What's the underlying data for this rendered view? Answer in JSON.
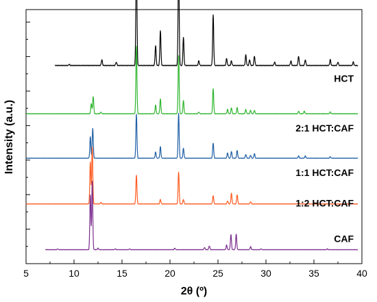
{
  "chart_data": {
    "type": "line",
    "xlabel": "2θ (º)",
    "ylabel": "Intensity (a.u.)",
    "xlim": [
      5,
      40
    ],
    "x_ticks": [
      5,
      10,
      15,
      20,
      25,
      30,
      35,
      40
    ],
    "x_tick_labels": [
      "5",
      "10",
      "15",
      "20",
      "25",
      "30",
      "35",
      "40"
    ],
    "y_tick_labels_shown": false,
    "legend": "inline labels at right of each trace",
    "series": [
      {
        "name": "HCT",
        "color": "#000000",
        "baseline": 0.78,
        "scale": 0.46,
        "x_start": 8.0,
        "peaks": [
          [
            9.5,
            0.01
          ],
          [
            12.9,
            0.05
          ],
          [
            14.4,
            0.03
          ],
          [
            16.5,
            1.0
          ],
          [
            18.5,
            0.17
          ],
          [
            19.0,
            0.3
          ],
          [
            20.9,
            0.92
          ],
          [
            21.4,
            0.24
          ],
          [
            23.0,
            0.04
          ],
          [
            24.5,
            0.43
          ],
          [
            25.9,
            0.06
          ],
          [
            26.4,
            0.04
          ],
          [
            27.9,
            0.09
          ],
          [
            28.3,
            0.05
          ],
          [
            28.8,
            0.08
          ],
          [
            30.9,
            0.03
          ],
          [
            32.6,
            0.04
          ],
          [
            33.4,
            0.08
          ],
          [
            34.1,
            0.05
          ],
          [
            36.7,
            0.05
          ],
          [
            37.5,
            0.03
          ],
          [
            39.1,
            0.03
          ]
        ]
      },
      {
        "name": "2:1 HCT:CAF",
        "color": "#2db52d",
        "baseline": 0.59,
        "scale": 0.34,
        "x_start": 5.0,
        "peaks": [
          [
            11.8,
            0.12
          ],
          [
            12.0,
            0.2
          ],
          [
            12.8,
            0.02
          ],
          [
            16.5,
            0.78
          ],
          [
            18.5,
            0.1
          ],
          [
            19.0,
            0.17
          ],
          [
            20.9,
            0.67
          ],
          [
            21.4,
            0.15
          ],
          [
            23.0,
            0.02
          ],
          [
            24.5,
            0.29
          ],
          [
            26.0,
            0.05
          ],
          [
            26.4,
            0.07
          ],
          [
            27.0,
            0.07
          ],
          [
            27.9,
            0.05
          ],
          [
            28.4,
            0.04
          ],
          [
            28.8,
            0.04
          ],
          [
            33.4,
            0.03
          ],
          [
            34.0,
            0.03
          ],
          [
            36.7,
            0.02
          ]
        ]
      },
      {
        "name": "1:1 HCT:CAF",
        "color": "#1f5fa5",
        "baseline": 0.415,
        "scale": 0.3,
        "x_start": 5.0,
        "peaks": [
          [
            11.7,
            0.28
          ],
          [
            11.95,
            0.4
          ],
          [
            16.5,
            0.58
          ],
          [
            18.5,
            0.08
          ],
          [
            19.0,
            0.15
          ],
          [
            20.9,
            0.59
          ],
          [
            21.4,
            0.13
          ],
          [
            24.5,
            0.2
          ],
          [
            26.0,
            0.07
          ],
          [
            26.4,
            0.09
          ],
          [
            27.0,
            0.1
          ],
          [
            27.9,
            0.05
          ],
          [
            28.4,
            0.04
          ],
          [
            28.8,
            0.06
          ],
          [
            33.4,
            0.03
          ],
          [
            34.1,
            0.03
          ],
          [
            36.7,
            0.02
          ]
        ]
      },
      {
        "name": "1:2 HCT:CAF",
        "color": "#ff5a1f",
        "baseline": 0.235,
        "scale": 0.3,
        "x_start": 5.0,
        "peaks": [
          [
            11.7,
            0.55
          ],
          [
            11.9,
            0.75
          ],
          [
            12.8,
            0.02
          ],
          [
            16.5,
            0.38
          ],
          [
            19.0,
            0.06
          ],
          [
            20.9,
            0.42
          ],
          [
            21.4,
            0.06
          ],
          [
            24.5,
            0.11
          ],
          [
            26.0,
            0.04
          ],
          [
            26.4,
            0.14
          ],
          [
            27.0,
            0.12
          ],
          [
            28.4,
            0.03
          ],
          [
            33.4,
            0.02
          ]
        ]
      },
      {
        "name": "CAF",
        "color": "#7b2d8e",
        "baseline": 0.055,
        "scale": 0.3,
        "x_start": 7.0,
        "peaks": [
          [
            8.3,
            0.01
          ],
          [
            11.7,
            0.72
          ],
          [
            11.9,
            0.9
          ],
          [
            12.5,
            0.02
          ],
          [
            14.3,
            0.01
          ],
          [
            15.8,
            0.01
          ],
          [
            20.5,
            0.02
          ],
          [
            23.6,
            0.03
          ],
          [
            24.1,
            0.05
          ],
          [
            25.9,
            0.06
          ],
          [
            26.35,
            0.2
          ],
          [
            26.9,
            0.2
          ],
          [
            28.4,
            0.04
          ],
          [
            29.5,
            0.01
          ],
          [
            36.4,
            0.01
          ]
        ]
      }
    ]
  }
}
